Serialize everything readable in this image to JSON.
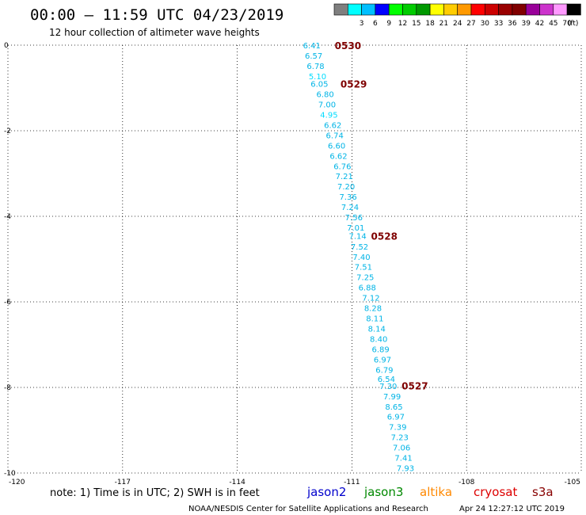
{
  "header": {
    "title": "00:00 – 11:59 UTC 04/23/2019",
    "subtitle": "12 hour collection of altimeter wave heights"
  },
  "legend": {
    "unit": "(ft)",
    "bins": [
      {
        "label": "",
        "color": "#7f7f7f"
      },
      {
        "label": "3",
        "color": "#00ffff"
      },
      {
        "label": "6",
        "color": "#00bfff"
      },
      {
        "label": "9",
        "color": "#0000ff"
      },
      {
        "label": "12",
        "color": "#00ff00"
      },
      {
        "label": "15",
        "color": "#00cc00"
      },
      {
        "label": "18",
        "color": "#009900"
      },
      {
        "label": "21",
        "color": "#ffff00"
      },
      {
        "label": "24",
        "color": "#ffcc00"
      },
      {
        "label": "27",
        "color": "#ff9900"
      },
      {
        "label": "30",
        "color": "#ff0000"
      },
      {
        "label": "33",
        "color": "#cc0000"
      },
      {
        "label": "36",
        "color": "#990000"
      },
      {
        "label": "39",
        "color": "#800000"
      },
      {
        "label": "42",
        "color": "#990099"
      },
      {
        "label": "45",
        "color": "#cc33cc"
      },
      {
        "label": "70",
        "color": "#ff99ff"
      },
      {
        "label": "",
        "color": "#000000"
      }
    ]
  },
  "chart_data": {
    "type": "scatter",
    "xlim": [
      -120,
      -105
    ],
    "ylim": [
      -10,
      0
    ],
    "xticks": [
      "-120",
      "-117",
      "-114",
      "-111",
      "-108",
      "-105"
    ],
    "yticks": [
      "0",
      "-2",
      "-4",
      "-6",
      "-8",
      "-10"
    ],
    "grid": true,
    "time_labels": [
      {
        "label": "0530",
        "x": -111.45,
        "y": 0.0
      },
      {
        "label": "0529",
        "x": -111.3,
        "y": -0.9
      },
      {
        "label": "0528",
        "x": -110.5,
        "y": -4.45
      },
      {
        "label": "0527",
        "x": -109.7,
        "y": -7.95
      }
    ],
    "points": [
      {
        "x": -112.05,
        "y": 0.0,
        "v": "6.41"
      },
      {
        "x": -112.0,
        "y": -0.24,
        "v": "6.57"
      },
      {
        "x": -111.95,
        "y": -0.48,
        "v": "6.78"
      },
      {
        "x": -111.9,
        "y": -0.72,
        "v": "5.10"
      },
      {
        "x": -111.85,
        "y": -0.9,
        "v": "6.05"
      },
      {
        "x": -111.7,
        "y": -1.14,
        "v": "6.80"
      },
      {
        "x": -111.65,
        "y": -1.38,
        "v": "7.00"
      },
      {
        "x": -111.6,
        "y": -1.62,
        "v": "4.95"
      },
      {
        "x": -111.5,
        "y": -1.86,
        "v": "6.62"
      },
      {
        "x": -111.45,
        "y": -2.1,
        "v": "6.74"
      },
      {
        "x": -111.4,
        "y": -2.34,
        "v": "6.60"
      },
      {
        "x": -111.35,
        "y": -2.58,
        "v": "6.62"
      },
      {
        "x": -111.25,
        "y": -2.82,
        "v": "6.76"
      },
      {
        "x": -111.2,
        "y": -3.06,
        "v": "7.21"
      },
      {
        "x": -111.15,
        "y": -3.3,
        "v": "7.20"
      },
      {
        "x": -111.1,
        "y": -3.54,
        "v": "7.36"
      },
      {
        "x": -111.05,
        "y": -3.78,
        "v": "7.24"
      },
      {
        "x": -110.95,
        "y": -4.02,
        "v": "7.56"
      },
      {
        "x": -110.9,
        "y": -4.26,
        "v": "7.01"
      },
      {
        "x": -110.85,
        "y": -4.45,
        "v": "7.14"
      },
      {
        "x": -110.8,
        "y": -4.7,
        "v": "7.52"
      },
      {
        "x": -110.75,
        "y": -4.94,
        "v": "7.40"
      },
      {
        "x": -110.7,
        "y": -5.18,
        "v": "7.51"
      },
      {
        "x": -110.65,
        "y": -5.42,
        "v": "7.25"
      },
      {
        "x": -110.6,
        "y": -5.66,
        "v": "6.88"
      },
      {
        "x": -110.5,
        "y": -5.9,
        "v": "7.12"
      },
      {
        "x": -110.45,
        "y": -6.14,
        "v": "8.28"
      },
      {
        "x": -110.4,
        "y": -6.38,
        "v": "8.11"
      },
      {
        "x": -110.35,
        "y": -6.62,
        "v": "8.14"
      },
      {
        "x": -110.3,
        "y": -6.86,
        "v": "8.40"
      },
      {
        "x": -110.25,
        "y": -7.1,
        "v": "6.89"
      },
      {
        "x": -110.2,
        "y": -7.34,
        "v": "6.97"
      },
      {
        "x": -110.15,
        "y": -7.58,
        "v": "6.79"
      },
      {
        "x": -110.1,
        "y": -7.8,
        "v": "6.54"
      },
      {
        "x": -110.05,
        "y": -7.96,
        "v": "7.30"
      },
      {
        "x": -109.95,
        "y": -8.2,
        "v": "7.99"
      },
      {
        "x": -109.9,
        "y": -8.44,
        "v": "8.65"
      },
      {
        "x": -109.85,
        "y": -8.68,
        "v": "6.97"
      },
      {
        "x": -109.8,
        "y": -8.92,
        "v": "7.39"
      },
      {
        "x": -109.75,
        "y": -9.16,
        "v": "7.23"
      },
      {
        "x": -109.7,
        "y": -9.4,
        "v": "7.06"
      },
      {
        "x": -109.65,
        "y": -9.64,
        "v": "7.41"
      },
      {
        "x": -109.6,
        "y": -9.88,
        "v": "7.93"
      }
    ]
  },
  "colors": {
    "point_text": "#00b4e6",
    "point_text_light": "#00dcff",
    "time_label": "#7f0000",
    "grid": "#000000"
  },
  "note": "note: 1) Time is in UTC; 2) SWH is in feet",
  "satellites": [
    {
      "name": "jason2",
      "color": "#0000cc"
    },
    {
      "name": "jason3",
      "color": "#008800"
    },
    {
      "name": "altika",
      "color": "#ff8800"
    },
    {
      "name": "cryosat",
      "color": "#dd0000"
    },
    {
      "name": "s3a",
      "color": "#880000"
    }
  ],
  "footer": {
    "credit": "NOAA/NESDIS Center for Satellite Applications and Research",
    "timestamp": "Apr 24 12:27:12 UTC 2019"
  }
}
